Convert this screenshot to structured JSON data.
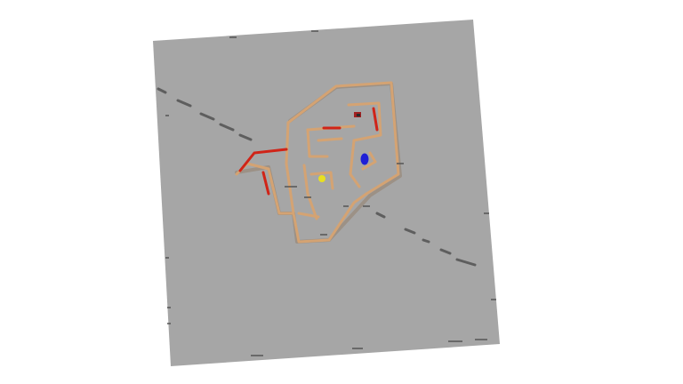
{
  "scene": {
    "background_color": "#ffffff",
    "ground_color": "#a6a6a6",
    "wall_color": "#d4a373",
    "wall_shadow_color": "#b07d4e",
    "hazard_wall_color": "#d02418",
    "agent_blue_color": "#1f1fd6",
    "agent_yellow_color": "#e8e020",
    "marker_color": "#444444"
  },
  "entities": [
    {
      "name": "blue-agent",
      "color_key": "agent_blue_color"
    },
    {
      "name": "yellow-goal",
      "color_key": "agent_yellow_color"
    },
    {
      "name": "red-object",
      "color_key": "hazard_wall_color"
    }
  ]
}
